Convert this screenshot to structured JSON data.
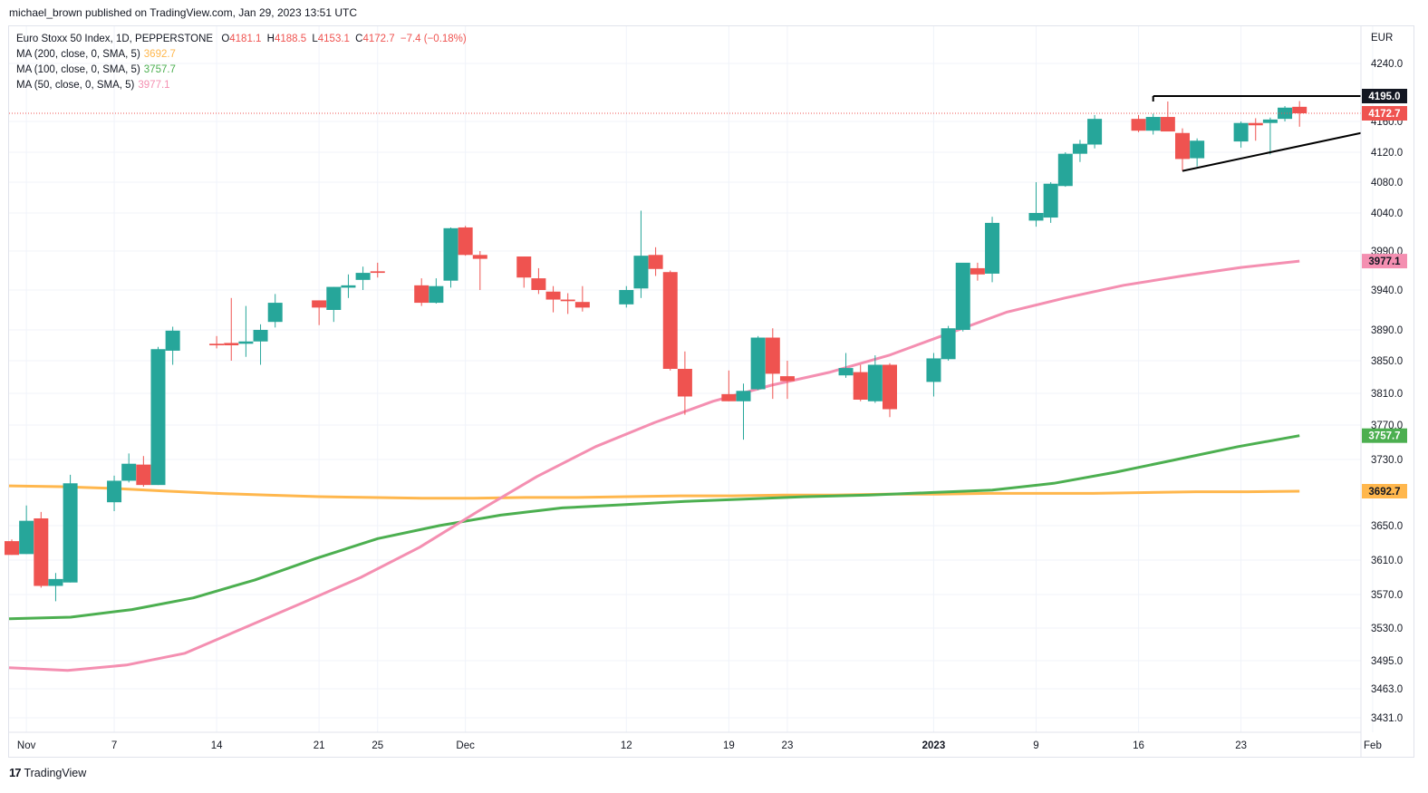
{
  "header": {
    "publisher_line": "michael_brown published on TradingView.com, Jan 29, 2023 13:51 UTC"
  },
  "legend": {
    "symbol": "Euro Stoxx 50 Index, 1D, PEPPERSTONE",
    "ohlc": {
      "o_label": "O",
      "o": "4181.1",
      "h_label": "H",
      "h": "4188.5",
      "l_label": "L",
      "l": "4153.1",
      "c_label": "C",
      "c": "4172.7",
      "change": "−7.4 (−0.18%)"
    },
    "ma200": {
      "label": "MA (200, close, 0, SMA, 5)",
      "value": "3692.7"
    },
    "ma100": {
      "label": "MA (100, close, 0, SMA, 5)",
      "value": "3757.7"
    },
    "ma50": {
      "label": "MA (50, close, 0, SMA, 5)",
      "value": "3977.1"
    }
  },
  "footer": {
    "brand": "TradingView",
    "logo_glyph": "17"
  },
  "colors": {
    "up": "#26a69a",
    "down": "#ef5350",
    "ma200": "#ffb74d",
    "ma100": "#4caf50",
    "ma50": "#f48fb1",
    "grid": "#f0f3fa",
    "axis_text": "#131722"
  },
  "chart_data": {
    "type": "candlestick",
    "title": "Euro Stoxx 50 Index, 1D, PEPPERSTONE",
    "currency_label": "EUR",
    "y_ticks": [
      "4240.0",
      "4160.0",
      "4120.0",
      "4080.0",
      "4040.0",
      "3990.0",
      "3940.0",
      "3890.0",
      "3850.0",
      "3810.0",
      "3770.0",
      "3730.0",
      "3650.0",
      "3610.0",
      "3570.0",
      "3530.0",
      "3495.0",
      "3463.0",
      "3431.0"
    ],
    "x_ticks": [
      {
        "label": "Nov",
        "date": "2022-11-01"
      },
      {
        "label": "7",
        "date": "2022-11-07"
      },
      {
        "label": "14",
        "date": "2022-11-14"
      },
      {
        "label": "21",
        "date": "2022-11-21"
      },
      {
        "label": "25",
        "date": "2022-11-25"
      },
      {
        "label": "Dec",
        "date": "2022-12-01"
      },
      {
        "label": "12",
        "date": "2022-12-12"
      },
      {
        "label": "19",
        "date": "2022-12-19"
      },
      {
        "label": "23",
        "date": "2022-12-23"
      },
      {
        "label": "2023",
        "date": "2023-01-02"
      },
      {
        "label": "9",
        "date": "2023-01-09"
      },
      {
        "label": "16",
        "date": "2023-01-16"
      },
      {
        "label": "23",
        "date": "2023-01-23"
      },
      {
        "label": "Feb",
        "date": "2023-02-01"
      }
    ],
    "candles": [
      {
        "date": "2022-10-31",
        "o": 3632,
        "h": 3634,
        "l": 3616,
        "c": 3616
      },
      {
        "date": "2022-11-01",
        "o": 3617,
        "h": 3675,
        "l": 3617,
        "c": 3656
      },
      {
        "date": "2022-11-02",
        "o": 3659,
        "h": 3667,
        "l": 3578,
        "c": 3580
      },
      {
        "date": "2022-11-03",
        "o": 3580,
        "h": 3595,
        "l": 3562,
        "c": 3588
      },
      {
        "date": "2022-11-04",
        "o": 3584,
        "h": 3712,
        "l": 3584,
        "c": 3702
      },
      {
        "date": "2022-11-07",
        "o": 3679,
        "h": 3711,
        "l": 3668,
        "c": 3705
      },
      {
        "date": "2022-11-08",
        "o": 3705,
        "h": 3737,
        "l": 3703,
        "c": 3725
      },
      {
        "date": "2022-11-09",
        "o": 3724,
        "h": 3734,
        "l": 3698,
        "c": 3700
      },
      {
        "date": "2022-11-10",
        "o": 3700,
        "h": 3868,
        "l": 3700,
        "c": 3865
      },
      {
        "date": "2022-11-11",
        "o": 3863,
        "h": 3894,
        "l": 3845,
        "c": 3889
      },
      {
        "date": "2022-11-14",
        "o": 3872,
        "h": 3882,
        "l": 3866,
        "c": 3870
      },
      {
        "date": "2022-11-15",
        "o": 3873,
        "h": 3930,
        "l": 3850,
        "c": 3870
      },
      {
        "date": "2022-11-16",
        "o": 3872,
        "h": 3920,
        "l": 3855,
        "c": 3875
      },
      {
        "date": "2022-11-17",
        "o": 3875,
        "h": 3897,
        "l": 3845,
        "c": 3890
      },
      {
        "date": "2022-11-18",
        "o": 3900,
        "h": 3935,
        "l": 3893,
        "c": 3924
      },
      {
        "date": "2022-11-21",
        "o": 3927,
        "h": 3927,
        "l": 3896,
        "c": 3918
      },
      {
        "date": "2022-11-22",
        "o": 3915,
        "h": 3944,
        "l": 3900,
        "c": 3944
      },
      {
        "date": "2022-11-23",
        "o": 3943,
        "h": 3960,
        "l": 3930,
        "c": 3946
      },
      {
        "date": "2022-11-24",
        "o": 3953,
        "h": 3970,
        "l": 3940,
        "c": 3962
      },
      {
        "date": "2022-11-25",
        "o": 3964,
        "h": 3975,
        "l": 3956,
        "c": 3962
      },
      {
        "date": "2022-11-28",
        "o": 3946,
        "h": 3955,
        "l": 3920,
        "c": 3924
      },
      {
        "date": "2022-11-29",
        "o": 3924,
        "h": 3955,
        "l": 3923,
        "c": 3945
      },
      {
        "date": "2022-11-30",
        "o": 3952,
        "h": 4021,
        "l": 3943,
        "c": 4020
      },
      {
        "date": "2022-12-01",
        "o": 4021,
        "h": 4023,
        "l": 3984,
        "c": 3985
      },
      {
        "date": "2022-12-02",
        "o": 3985,
        "h": 3990,
        "l": 3940,
        "c": 3980
      },
      {
        "date": "2022-12-05",
        "o": 3983,
        "h": 3983,
        "l": 3943,
        "c": 3956
      },
      {
        "date": "2022-12-06",
        "o": 3955,
        "h": 3968,
        "l": 3935,
        "c": 3940
      },
      {
        "date": "2022-12-07",
        "o": 3938,
        "h": 3945,
        "l": 3912,
        "c": 3928
      },
      {
        "date": "2022-12-08",
        "o": 3928,
        "h": 3936,
        "l": 3910,
        "c": 3926
      },
      {
        "date": "2022-12-09",
        "o": 3925,
        "h": 3945,
        "l": 3913,
        "c": 3918
      },
      {
        "date": "2022-12-12",
        "o": 3922,
        "h": 3945,
        "l": 3918,
        "c": 3940
      },
      {
        "date": "2022-12-13",
        "o": 3942,
        "h": 4043,
        "l": 3930,
        "c": 3984
      },
      {
        "date": "2022-12-14",
        "o": 3985,
        "h": 3995,
        "l": 3958,
        "c": 3967
      },
      {
        "date": "2022-12-15",
        "o": 3963,
        "h": 3965,
        "l": 3838,
        "c": 3840
      },
      {
        "date": "2022-12-16",
        "o": 3840,
        "h": 3862,
        "l": 3783,
        "c": 3806
      },
      {
        "date": "2022-12-19",
        "o": 3809,
        "h": 3838,
        "l": 3800,
        "c": 3800
      },
      {
        "date": "2022-12-20",
        "o": 3800,
        "h": 3822,
        "l": 3753,
        "c": 3813
      },
      {
        "date": "2022-12-21",
        "o": 3815,
        "h": 3882,
        "l": 3814,
        "c": 3880
      },
      {
        "date": "2022-12-22",
        "o": 3880,
        "h": 3892,
        "l": 3803,
        "c": 3834
      },
      {
        "date": "2022-12-23",
        "o": 3831,
        "h": 3850,
        "l": 3803,
        "c": 3825
      },
      {
        "date": "2022-12-27",
        "o": 3832,
        "h": 3860,
        "l": 3829,
        "c": 3841
      },
      {
        "date": "2022-12-28",
        "o": 3836,
        "h": 3845,
        "l": 3800,
        "c": 3802
      },
      {
        "date": "2022-12-29",
        "o": 3800,
        "h": 3857,
        "l": 3798,
        "c": 3845
      },
      {
        "date": "2022-12-30",
        "o": 3845,
        "h": 3847,
        "l": 3780,
        "c": 3790
      },
      {
        "date": "2023-01-02",
        "o": 3824,
        "h": 3860,
        "l": 3806,
        "c": 3853
      },
      {
        "date": "2023-01-03",
        "o": 3852,
        "h": 3895,
        "l": 3850,
        "c": 3892
      },
      {
        "date": "2023-01-04",
        "o": 3890,
        "h": 3973,
        "l": 3888,
        "c": 3975
      },
      {
        "date": "2023-01-05",
        "o": 3968,
        "h": 3975,
        "l": 3952,
        "c": 3960
      },
      {
        "date": "2023-01-06",
        "o": 3961,
        "h": 4035,
        "l": 3950,
        "c": 4027
      },
      {
        "date": "2023-01-09",
        "o": 4030,
        "h": 4080,
        "l": 4022,
        "c": 4040
      },
      {
        "date": "2023-01-10",
        "o": 4034,
        "h": 4080,
        "l": 4027,
        "c": 4078
      },
      {
        "date": "2023-01-11",
        "o": 4075,
        "h": 4120,
        "l": 4074,
        "c": 4118
      },
      {
        "date": "2023-01-12",
        "o": 4118,
        "h": 4136,
        "l": 4107,
        "c": 4131
      },
      {
        "date": "2023-01-13",
        "o": 4130,
        "h": 4170,
        "l": 4125,
        "c": 4164
      },
      {
        "date": "2023-01-16",
        "o": 4164,
        "h": 4170,
        "l": 4146,
        "c": 4148
      },
      {
        "date": "2023-01-17",
        "o": 4148,
        "h": 4172,
        "l": 4143,
        "c": 4167
      },
      {
        "date": "2023-01-18",
        "o": 4167,
        "h": 4188,
        "l": 4149,
        "c": 4147
      },
      {
        "date": "2023-01-19",
        "o": 4145,
        "h": 4151,
        "l": 4095,
        "c": 4111
      },
      {
        "date": "2023-01-20",
        "o": 4112,
        "h": 4138,
        "l": 4101,
        "c": 4135
      },
      {
        "date": "2023-01-23",
        "o": 4134,
        "h": 4160,
        "l": 4126,
        "c": 4158
      },
      {
        "date": "2023-01-24",
        "o": 4158,
        "h": 4165,
        "l": 4135,
        "c": 4155
      },
      {
        "date": "2023-01-25",
        "o": 4158,
        "h": 4166,
        "l": 4117,
        "c": 4163
      },
      {
        "date": "2023-01-26",
        "o": 4164,
        "h": 4182,
        "l": 4160,
        "c": 4180
      },
      {
        "date": "2023-01-27",
        "o": 4181.1,
        "h": 4188.5,
        "l": 4153.1,
        "c": 4172.7
      }
    ],
    "ma200": [
      3699,
      3698,
      3696,
      3693,
      3690,
      3688,
      3686,
      3685,
      3684,
      3684,
      3685,
      3685,
      3686,
      3687,
      3687,
      3688,
      3688,
      3689,
      3689,
      3690,
      3690,
      3690,
      3691,
      3692,
      3692,
      3692.7
    ],
    "ma100": [
      3541,
      3543,
      3552,
      3566,
      3587,
      3612,
      3635,
      3650,
      3663,
      3672,
      3676,
      3680,
      3683,
      3686,
      3688,
      3691,
      3694,
      3702,
      3715,
      3730,
      3745,
      3757.7
    ],
    "ma50": [
      3487,
      3484,
      3490,
      3503,
      3530,
      3560,
      3590,
      3625,
      3668,
      3710,
      3745,
      3773,
      3800,
      3820,
      3836,
      3857,
      3885,
      3912,
      3930,
      3946,
      3958,
      3969,
      3977.1
    ],
    "last_price": 4172.7,
    "resistance_label": "4195.0",
    "resistance": {
      "from": "2023-01-17",
      "to": "2023-02-01",
      "value": 4195
    },
    "support_trendline": {
      "from": {
        "date": "2023-01-19",
        "value": 4095
      },
      "to": {
        "date": "2023-02-01",
        "value": 4145
      }
    },
    "price_tags": [
      {
        "label": "4195.0",
        "value": 4195,
        "style": "black"
      },
      {
        "label": "4172.7",
        "value": 4172.7,
        "style": "down"
      },
      {
        "label": "3977.1",
        "value": 3977.1,
        "style": "ma50"
      },
      {
        "label": "3757.7",
        "value": 3757.7,
        "style": "ma100"
      },
      {
        "label": "3692.7",
        "value": 3692.7,
        "style": "ma200"
      }
    ],
    "grid": true,
    "legend_position": "top-left"
  }
}
